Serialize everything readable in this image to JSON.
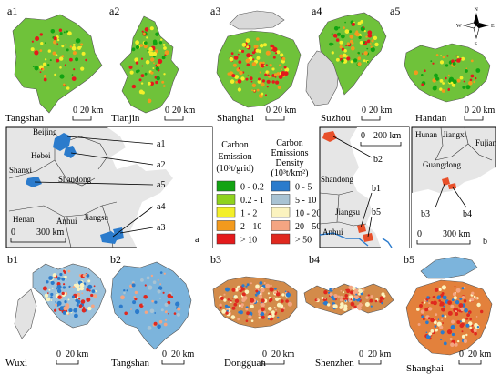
{
  "panels_top": [
    {
      "id": "a1",
      "city": "Tangshan",
      "scale": "20 km"
    },
    {
      "id": "a2",
      "city": "Tianjin",
      "scale": "20 km"
    },
    {
      "id": "a3",
      "city": "Shanghai",
      "scale": "20 km"
    },
    {
      "id": "a4",
      "city": "Suzhou",
      "scale": "20 km"
    },
    {
      "id": "a5",
      "city": "Handan",
      "scale": "20 km"
    }
  ],
  "panels_bottom": [
    {
      "id": "b1",
      "city": "Wuxi",
      "scale": "20 km"
    },
    {
      "id": "b2",
      "city": "Tangshan",
      "scale": "20 km"
    },
    {
      "id": "b3",
      "city": "Dongguan",
      "scale": "20 km"
    },
    {
      "id": "b4",
      "city": "Shenzhen",
      "scale": "20 km"
    },
    {
      "id": "b5",
      "city": "Shanghai",
      "scale": "20 km"
    }
  ],
  "north_arrow": {
    "n": "N",
    "s": "S",
    "e": "E",
    "w": "W"
  },
  "map_a": {
    "label": "a",
    "scale_zero": "0",
    "scale": "300 km",
    "regions": [
      "Beijing",
      "Hebei",
      "Shanxi",
      "Shandong",
      "Henan",
      "Anhui",
      "Jiangsu"
    ],
    "callouts": [
      "a1",
      "a2",
      "a5",
      "a4",
      "a3"
    ]
  },
  "map_b_left": {
    "scale_zero": "0",
    "scale": "200 km",
    "regions": [
      "Shandong",
      "Jiangsu",
      "Anhui"
    ],
    "callouts": [
      "b2",
      "b1",
      "b5"
    ]
  },
  "map_b_right": {
    "label": "b",
    "scale_zero": "0",
    "scale": "300 km",
    "regions": [
      "Hunan",
      "Jiangxi",
      "Fujian",
      "Guangdong"
    ],
    "callouts": [
      "b3",
      "b4"
    ]
  },
  "legend_emission": {
    "title_lines": [
      "Carbon",
      "Emission",
      "(10³t/grid)"
    ],
    "items": [
      {
        "label": "0 - 0.2",
        "color": "#12a312"
      },
      {
        "label": "0.2 - 1",
        "color": "#8fd21e"
      },
      {
        "label": "1 - 2",
        "color": "#f3ef2a"
      },
      {
        "label": "2 - 10",
        "color": "#f39a1d"
      },
      {
        "label": "> 10",
        "color": "#e41a1c"
      }
    ]
  },
  "legend_density": {
    "title_lines": [
      "Carbon",
      "Emissions",
      "Density",
      "(10³t/km²)"
    ],
    "items": [
      {
        "label": "0 - 5",
        "color": "#2b7bcc"
      },
      {
        "label": "5 - 10",
        "color": "#a9c3d3"
      },
      {
        "label": "10 - 20",
        "color": "#fbf3bf"
      },
      {
        "label": "20 - 50",
        "color": "#f4a582"
      },
      {
        "label": "> 50",
        "color": "#e0291f"
      }
    ]
  }
}
